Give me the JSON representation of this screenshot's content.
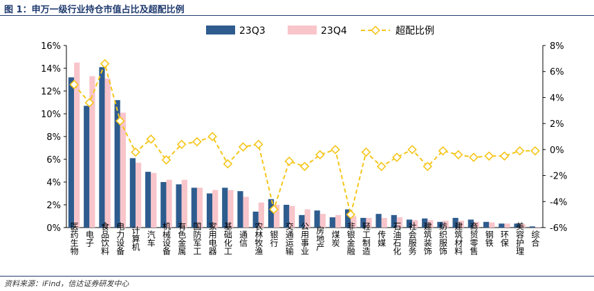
{
  "header": {
    "title": "图 1：申万一级行业持仓市值占比及超配比例"
  },
  "footer": {
    "source": "资料来源：iFind，信达证券研发中心"
  },
  "colors": {
    "q3": "#2e5c8e",
    "q4": "#f8c5cb",
    "line": "#f5c518",
    "axis": "#000000"
  },
  "chart_data": {
    "type": "bar",
    "categories": [
      "医药生物",
      "电子",
      "食品饮料",
      "电力设备",
      "计算机",
      "汽车",
      "机械设备",
      "有色金属",
      "国防军工",
      "家用电器",
      "基础化工",
      "通信",
      "农林牧渔",
      "银行",
      "交通运输",
      "公用事业",
      "房地产",
      "煤炭",
      "非银金融",
      "轻工制造",
      "传媒",
      "石油石化",
      "社会服务",
      "建筑装饰",
      "纺织服饰",
      "建筑材料",
      "商贸零售",
      "钢铁",
      "环保",
      "美容护理",
      "综合"
    ],
    "series": [
      {
        "name": "23Q3",
        "type": "bar",
        "axis": "left",
        "values": [
          13.2,
          10.7,
          14.1,
          11.2,
          6.1,
          4.9,
          4.0,
          3.8,
          3.5,
          3.0,
          3.5,
          3.2,
          1.4,
          2.5,
          2.0,
          1.1,
          1.5,
          0.9,
          1.6,
          0.85,
          1.2,
          1.1,
          0.7,
          0.8,
          0.5,
          0.85,
          0.7,
          0.5,
          0.35,
          0.35,
          0.1
        ]
      },
      {
        "name": "23Q4",
        "type": "bar",
        "axis": "left",
        "values": [
          14.5,
          13.3,
          13.1,
          10.1,
          5.7,
          4.8,
          4.2,
          4.2,
          3.5,
          3.3,
          3.3,
          2.7,
          2.2,
          2.0,
          1.9,
          1.6,
          1.2,
          1.1,
          1.0,
          0.85,
          0.85,
          0.9,
          0.65,
          0.65,
          0.6,
          0.6,
          0.5,
          0.45,
          0.35,
          0.3,
          0.05
        ]
      },
      {
        "name": "超配比例",
        "type": "line",
        "axis": "right",
        "values": [
          5.0,
          3.6,
          6.6,
          2.2,
          -0.2,
          0.8,
          -0.8,
          0.4,
          0.6,
          1.0,
          -1.1,
          0.2,
          0.4,
          -4.6,
          -0.9,
          -1.3,
          -0.4,
          0.0,
          -5.0,
          -0.2,
          -1.3,
          -0.6,
          0.0,
          -1.3,
          -0.1,
          -0.4,
          -0.6,
          -0.5,
          -0.5,
          -0.1,
          -0.1
        ]
      }
    ],
    "ylim_left": [
      0,
      16
    ],
    "ylim_right": [
      -6,
      8
    ],
    "yticks_left": [
      "0%",
      "2%",
      "4%",
      "6%",
      "8%",
      "10%",
      "12%",
      "14%",
      "16%"
    ],
    "yticks_right": [
      "-6%",
      "-4%",
      "-2%",
      "0%",
      "2%",
      "4%",
      "6%",
      "8%"
    ],
    "legend_position": "top-center",
    "grid": false
  }
}
